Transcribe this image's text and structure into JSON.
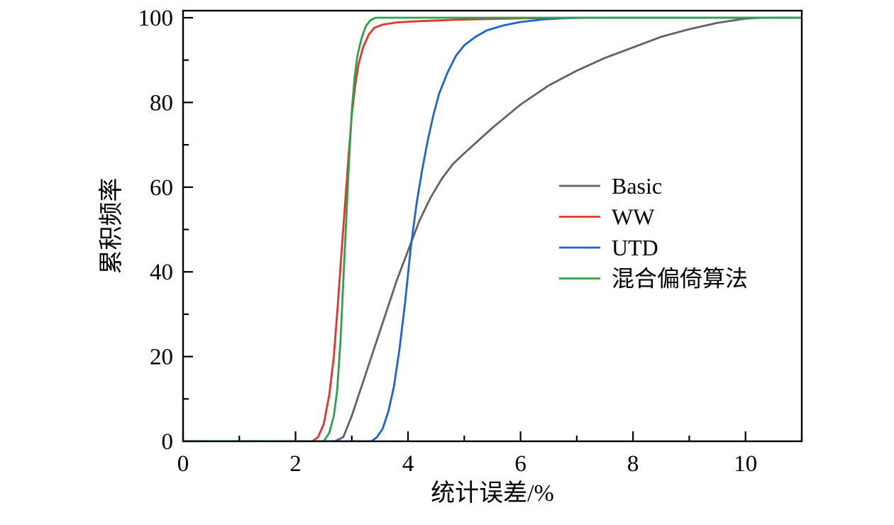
{
  "chart_data": {
    "type": "line",
    "title": "",
    "xlabel": "统计误差/%",
    "ylabel": "累积频率",
    "xlim": [
      0,
      11
    ],
    "ylim": [
      0,
      100
    ],
    "xticks": [
      0,
      2,
      4,
      6,
      8,
      10
    ],
    "yticks": [
      0,
      20,
      40,
      60,
      80,
      100
    ],
    "x_minor_ticks": [
      1,
      3,
      5,
      7,
      9,
      11
    ],
    "y_minor_ticks": [
      10,
      30,
      50,
      70,
      90
    ],
    "grid": false,
    "legend_position": "inside-right-center",
    "frame_color": "#000000",
    "series": [
      {
        "name": "Basic",
        "color": "#636363",
        "points": [
          [
            0,
            0
          ],
          [
            2.7,
            0
          ],
          [
            2.85,
            1
          ],
          [
            3.0,
            6
          ],
          [
            3.1,
            10
          ],
          [
            3.2,
            14
          ],
          [
            3.3,
            18
          ],
          [
            3.4,
            22
          ],
          [
            3.6,
            30
          ],
          [
            3.8,
            38
          ],
          [
            4.0,
            45
          ],
          [
            4.2,
            52
          ],
          [
            4.4,
            57.5
          ],
          [
            4.6,
            62
          ],
          [
            4.8,
            65.5
          ],
          [
            5.0,
            68
          ],
          [
            5.5,
            74
          ],
          [
            6.0,
            79.5
          ],
          [
            6.5,
            84
          ],
          [
            7.0,
            87.5
          ],
          [
            7.5,
            90.5
          ],
          [
            8.0,
            93
          ],
          [
            8.5,
            95.5
          ],
          [
            9.0,
            97.3
          ],
          [
            9.5,
            98.8
          ],
          [
            10.0,
            99.8
          ],
          [
            10.3,
            100
          ],
          [
            11,
            100
          ]
        ]
      },
      {
        "name": "WW",
        "color": "#e2352c",
        "points": [
          [
            0,
            0
          ],
          [
            2.3,
            0
          ],
          [
            2.4,
            1
          ],
          [
            2.5,
            4
          ],
          [
            2.6,
            11
          ],
          [
            2.68,
            20
          ],
          [
            2.75,
            32
          ],
          [
            2.82,
            45
          ],
          [
            2.88,
            56
          ],
          [
            2.94,
            67
          ],
          [
            3.0,
            77
          ],
          [
            3.06,
            84
          ],
          [
            3.12,
            89
          ],
          [
            3.2,
            93
          ],
          [
            3.3,
            96
          ],
          [
            3.4,
            97.6
          ],
          [
            3.55,
            98.4
          ],
          [
            3.8,
            98.9
          ],
          [
            4.2,
            99.2
          ],
          [
            4.8,
            99.5
          ],
          [
            5.4,
            99.7
          ],
          [
            6.0,
            99.85
          ],
          [
            6.6,
            99.95
          ],
          [
            7.0,
            100
          ],
          [
            11,
            100
          ]
        ]
      },
      {
        "name": "UTD",
        "color": "#1e64d0",
        "points": [
          [
            0,
            0
          ],
          [
            3.35,
            0
          ],
          [
            3.45,
            1
          ],
          [
            3.55,
            3
          ],
          [
            3.65,
            7
          ],
          [
            3.75,
            13
          ],
          [
            3.85,
            22
          ],
          [
            3.95,
            33
          ],
          [
            4.05,
            46
          ],
          [
            4.15,
            56
          ],
          [
            4.25,
            64
          ],
          [
            4.35,
            71
          ],
          [
            4.45,
            77
          ],
          [
            4.55,
            82
          ],
          [
            4.7,
            87
          ],
          [
            4.85,
            91
          ],
          [
            5.0,
            93.5
          ],
          [
            5.2,
            95.5
          ],
          [
            5.4,
            97
          ],
          [
            5.7,
            98.2
          ],
          [
            6.0,
            99
          ],
          [
            6.4,
            99.6
          ],
          [
            6.8,
            99.9
          ],
          [
            7.2,
            100
          ],
          [
            11,
            100
          ]
        ]
      },
      {
        "name": "混合偏倚算法",
        "color": "#2fa04c",
        "points": [
          [
            0,
            0
          ],
          [
            2.5,
            0
          ],
          [
            2.6,
            2
          ],
          [
            2.68,
            6
          ],
          [
            2.74,
            12
          ],
          [
            2.8,
            24
          ],
          [
            2.85,
            38
          ],
          [
            2.9,
            52
          ],
          [
            2.95,
            66
          ],
          [
            3.0,
            78
          ],
          [
            3.05,
            86
          ],
          [
            3.1,
            91
          ],
          [
            3.17,
            95
          ],
          [
            3.25,
            98
          ],
          [
            3.33,
            99.4
          ],
          [
            3.42,
            100
          ],
          [
            11,
            100
          ]
        ]
      }
    ]
  }
}
